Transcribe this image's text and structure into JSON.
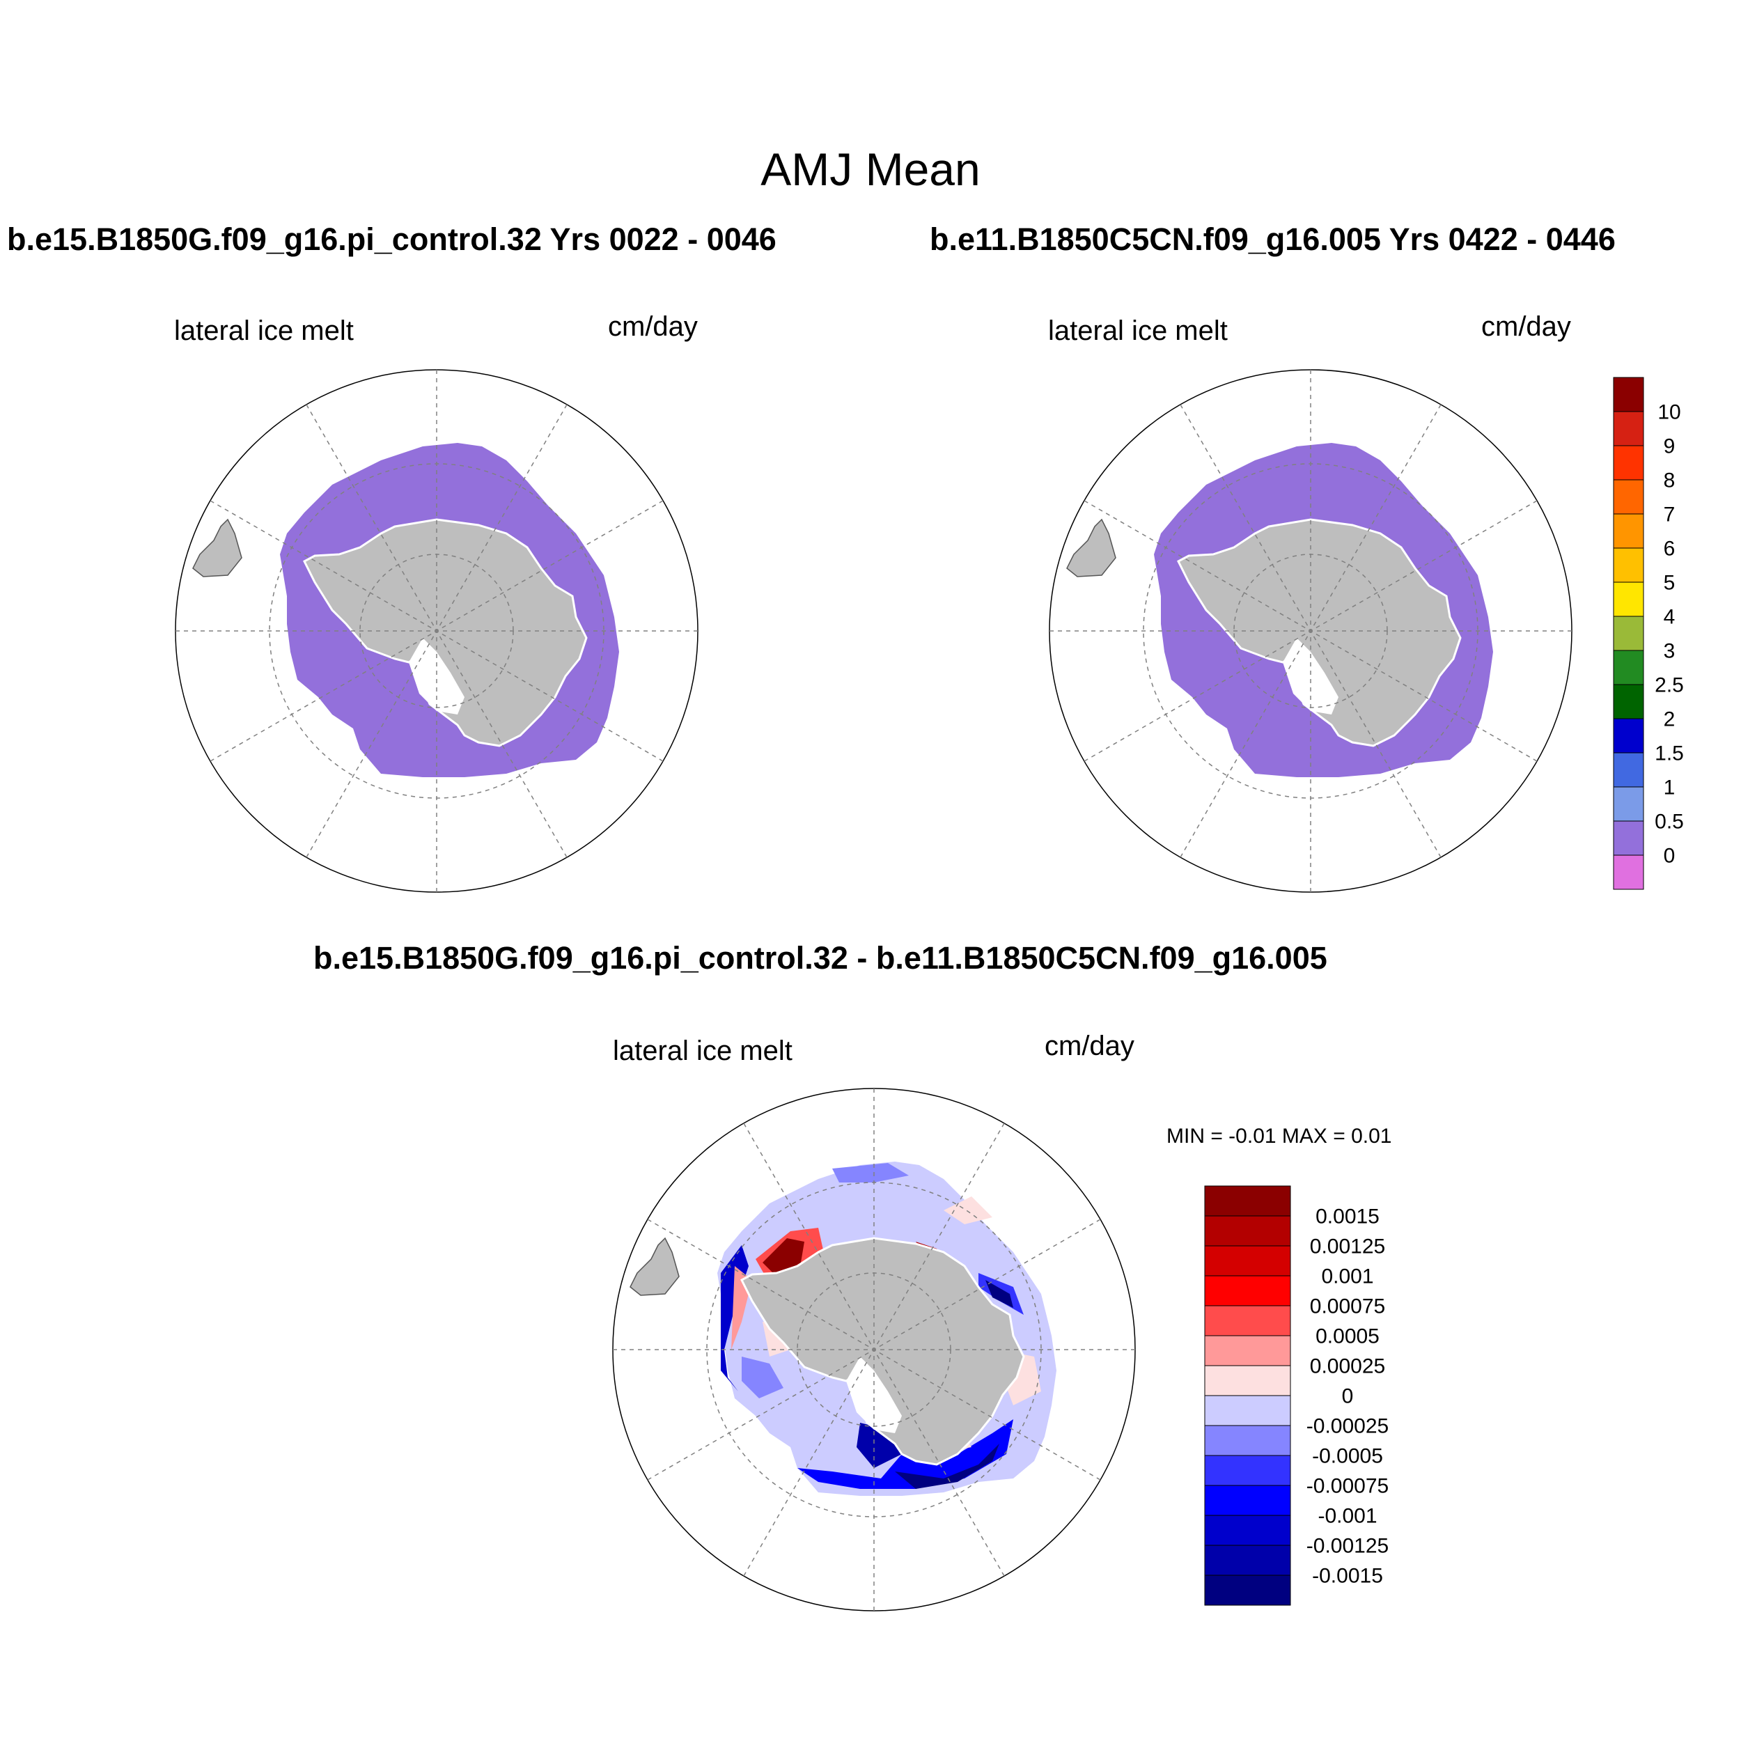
{
  "title": "AMJ Mean",
  "panels": [
    {
      "case": "b.e15.B1850G.f09_g16.pi_control.32  Yrs 0022 - 0046",
      "variable": "lateral ice melt",
      "units": "cm/day"
    },
    {
      "case": "b.e11.B1850C5CN.f09_g16.005  Yrs 0422 - 0446",
      "variable": "lateral ice melt",
      "units": "cm/day"
    },
    {
      "case": "b.e15.B1850G.f09_g16.pi_control.32 - b.e11.B1850C5CN.f09_g16.005",
      "variable": "lateral ice melt",
      "units": "cm/day",
      "min_max": "MIN =  -0.01 MAX =   0.01"
    }
  ],
  "colorbar_main": {
    "labels": [
      "10",
      "9",
      "8",
      "7",
      "6",
      "5",
      "4",
      "3",
      "2.5",
      "2",
      "1.5",
      "1",
      "0.5",
      "0"
    ],
    "colors": [
      "#8b0000",
      "#d62113",
      "#ff3300",
      "#ff6600",
      "#ff9500",
      "#ffc000",
      "#ffe600",
      "#9aba38",
      "#228b22",
      "#006400",
      "#0000cd",
      "#4169e1",
      "#7b9be8",
      "#9370db",
      "#e070e0"
    ]
  },
  "colorbar_diff": {
    "labels": [
      "0.0015",
      "0.00125",
      "0.001",
      "0.00075",
      "0.0005",
      "0.00025",
      "0",
      "-0.00025",
      "-0.0005",
      "-0.00075",
      "-0.001",
      "-0.00125",
      "-0.0015"
    ],
    "colors": [
      "#8b0000",
      "#b30000",
      "#d40000",
      "#ff0000",
      "#ff4c4c",
      "#ff9999",
      "#fde0e0",
      "#ccccff",
      "#8585ff",
      "#3333ff",
      "#0000ff",
      "#0000cc",
      "#0000aa",
      "#000080"
    ]
  },
  "colors": {
    "ice": "#9370db",
    "land": "#bebebe",
    "grid": "#808080"
  }
}
